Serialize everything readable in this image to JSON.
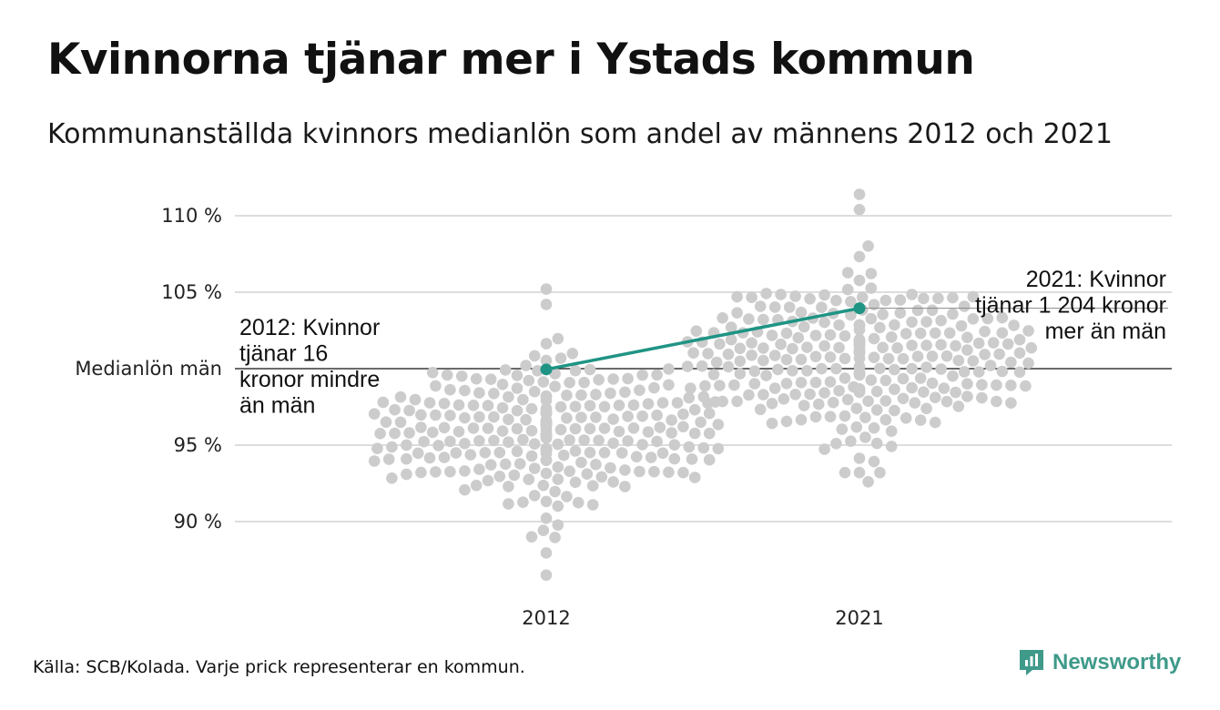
{
  "title": "Kvinnorna tjänar mer i Ystads kommun",
  "subtitle": "Kommunanställda kvinnors medianlön som andel av männens 2012 och 2021",
  "source": "Källa: SCB/Kolada. Varje prick representerar en kommun.",
  "logo": {
    "text": "Newsworthy",
    "color": "#3f9a8a"
  },
  "chart_data": {
    "type": "scatter",
    "title": "Kvinnorna tjänar mer i Ystads kommun",
    "subtitle": "Kommunanställda kvinnors medianlön som andel av männens 2012 och 2021",
    "categories": [
      "2012",
      "2021"
    ],
    "ylim": [
      86,
      112
    ],
    "y_ticks": [
      {
        "value": 110,
        "label": "110 %"
      },
      {
        "value": 105,
        "label": "105 %"
      },
      {
        "value": 100,
        "label": "Medianlön män"
      },
      {
        "value": 95,
        "label": "95 %"
      },
      {
        "value": 90,
        "label": "90 %"
      }
    ],
    "grid": true,
    "reference_line": {
      "value": 100,
      "label": "Medianlön män"
    },
    "distributions": [
      {
        "category": "2012",
        "count": 290,
        "mean": 96.0,
        "sd": 2.3,
        "min": 86.5,
        "max": 105.2,
        "color": "#cccccc"
      },
      {
        "category": "2021",
        "count": 290,
        "mean": 100.7,
        "sd": 2.6,
        "min": 92.6,
        "max": 111.4,
        "color": "#cccccc"
      }
    ],
    "highlight": {
      "name": "Ystads kommun",
      "color": "#1f9484",
      "values": [
        {
          "category": "2012",
          "y": 99.95
        },
        {
          "category": "2021",
          "y": 103.95
        }
      ]
    },
    "annotations": [
      {
        "category": "2012",
        "side": "left",
        "lines": [
          "2012: Kvinnor",
          "tjänar 16",
          "kronor mindre",
          "än män"
        ]
      },
      {
        "category": "2021",
        "side": "right",
        "lines": [
          "2021: Kvinnor",
          "tjänar 1 204 kronor",
          "mer än män"
        ]
      }
    ]
  }
}
